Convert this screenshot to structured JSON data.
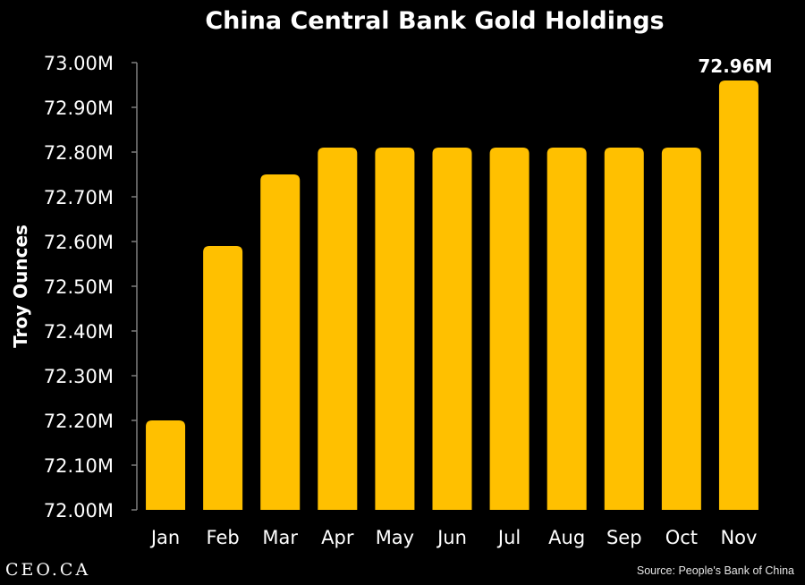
{
  "chart_data": {
    "type": "bar",
    "title": "China Central Bank Gold Holdings",
    "ylabel": "Troy Ounces",
    "xlabel": "",
    "categories": [
      "Jan",
      "Feb",
      "Mar",
      "Apr",
      "May",
      "Jun",
      "Jul",
      "Aug",
      "Sep",
      "Oct",
      "Nov"
    ],
    "values": [
      72.2,
      72.59,
      72.75,
      72.81,
      72.81,
      72.81,
      72.81,
      72.81,
      72.81,
      72.81,
      72.96
    ],
    "value_unit_suffix": "M",
    "ylim": [
      72.0,
      73.0
    ],
    "yticks": [
      "72.00M",
      "72.10M",
      "72.20M",
      "72.30M",
      "72.40M",
      "72.50M",
      "72.60M",
      "72.70M",
      "72.80M",
      "72.90M",
      "73.00M"
    ],
    "ytick_values": [
      72.0,
      72.1,
      72.2,
      72.3,
      72.4,
      72.5,
      72.6,
      72.7,
      72.8,
      72.9,
      73.0
    ],
    "annotations": [
      {
        "category": "Nov",
        "label": "72.96M"
      }
    ],
    "grid": false,
    "legend": "none",
    "bar_color": "#FFC000",
    "background_color": "#000000",
    "axis_color": "#7f7f7f"
  },
  "footer": {
    "brand": "CEO.CA",
    "source": "Source: People's Bank of China"
  }
}
